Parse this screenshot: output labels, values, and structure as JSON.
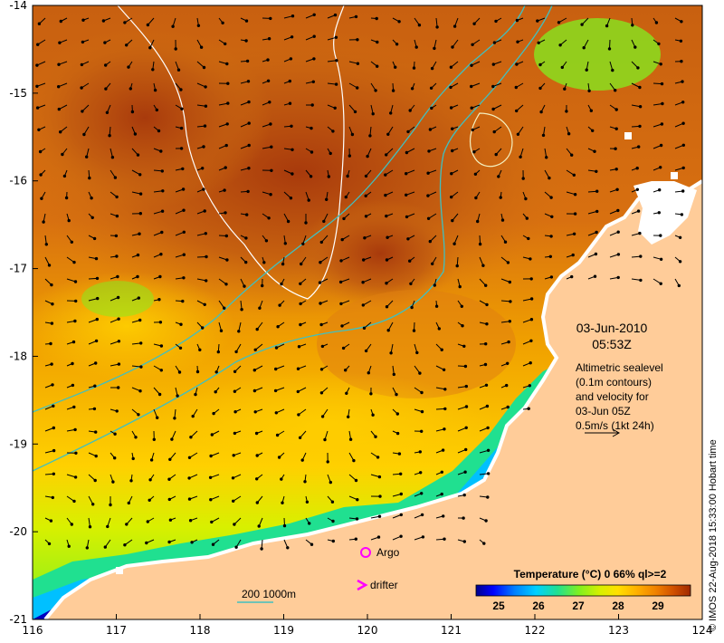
{
  "map": {
    "date": "03-Jun-2010",
    "time": "05:53Z",
    "info_lines": [
      "Altimetric sealevel",
      "(0.1m contours)",
      "and velocity for",
      "03-Jun 05Z",
      "0.5m/s (1kt 24h)"
    ],
    "argo_label": "Argo",
    "drifter_label": "drifter",
    "bathy_label": "200  1000m",
    "credit": "© IMOS 22-Aug-2018 15:33:00 Hobart time",
    "x_ticks": [
      "116",
      "117",
      "118",
      "119",
      "120",
      "121",
      "122",
      "123",
      "124"
    ],
    "y_ticks": [
      "-14",
      "-15",
      "-16",
      "-17",
      "-18",
      "-19",
      "-20",
      "-21"
    ],
    "colorbar": {
      "title": "Temperature (°C) 0 66% ql>=2",
      "ticks": [
        "25",
        "26",
        "27",
        "28",
        "29"
      ],
      "colors": [
        "#00008b",
        "#0000ff",
        "#0080ff",
        "#00d0ff",
        "#20e090",
        "#80f020",
        "#d8f000",
        "#ffe000",
        "#ffb000",
        "#f08000",
        "#d05000",
        "#a02800"
      ]
    },
    "colors": {
      "land": "#ffcc99",
      "sea_hot": "#b04010",
      "sea_warm": "#e08010",
      "sea_mid": "#ffcc00",
      "sea_cool": "#80f020",
      "sea_cold": "#00008b",
      "contour": "#ffffff",
      "bathy": "#40c0c0",
      "argo": "#ff00ff"
    }
  }
}
